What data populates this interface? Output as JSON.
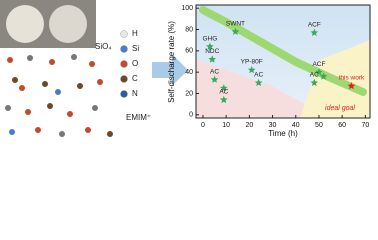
{
  "figure": {
    "legend": [
      "H",
      "Si",
      "O",
      "C",
      "N"
    ],
    "labels": [
      "SiO₄",
      "EMIM⁺"
    ]
  },
  "chart_data": {
    "type": "scatter",
    "x_label": "Time (h)",
    "y_label": "Self-discharge rate (%)",
    "xlim": [
      -3,
      72
    ],
    "ylim": [
      -3,
      103
    ],
    "xticks": [
      0,
      10,
      20,
      30,
      40,
      50,
      60,
      70
    ],
    "yticks": [
      0,
      20,
      40,
      60,
      80,
      100
    ],
    "annotations": [
      "ideal goal"
    ],
    "series": [
      {
        "color": "#3aa860",
        "x": [
          14,
          48,
          3,
          4,
          5,
          9,
          9,
          21,
          24,
          50,
          48,
          52
        ],
        "values": [
          78,
          77,
          64,
          52,
          33,
          25,
          14,
          42,
          30,
          40,
          30,
          36
        ],
        "labels": [
          "SWNT",
          "ACF",
          "GHG",
          "NDC",
          "AC",
          null,
          "AC",
          "YP-80F",
          "AC",
          "ACF",
          "AC",
          null
        ]
      },
      {
        "color": "#e02020",
        "x": [
          64
        ],
        "values": [
          27
        ],
        "labels": [
          "this work"
        ]
      }
    ]
  }
}
